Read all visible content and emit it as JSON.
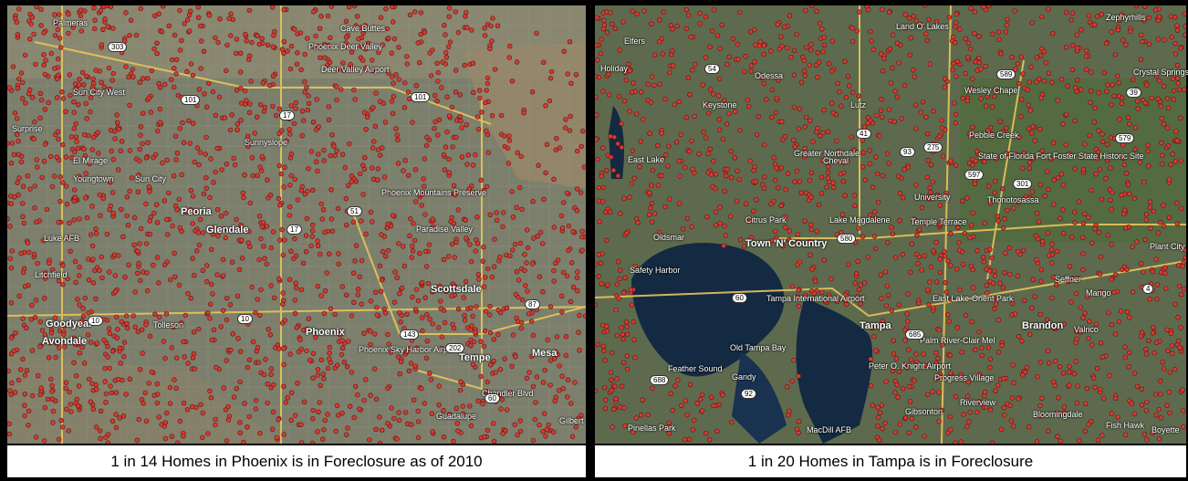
{
  "panels": [
    {
      "caption": "1 in 14 Homes in Phoenix is in Foreclosure as of 2010",
      "map_labels": [
        "Sun City West",
        "Surprise",
        "El Mirage",
        "Sun City",
        "Youngtown",
        "Peoria",
        "Glendale",
        "Luke AFB",
        "Litchfield",
        "Goodyear",
        "Avondale",
        "Tolleson",
        "Phoenix",
        "Scottsdale",
        "Tempe",
        "Mesa",
        "Gilbert",
        "Paradise Valley",
        "Phoenix Mountains Preserve",
        "Phoenix Sky Harbor Airport",
        "Guadalupe",
        "Deer Valley Airport",
        "Phoenix Deer Valley",
        "Cave Buttes",
        "Palmeras",
        "Sunnyslope",
        "Chandler Blvd"
      ],
      "road_shields": [
        "303",
        "101",
        "17",
        "51",
        "10",
        "202",
        "143",
        "60",
        "87",
        "101",
        "10",
        "17"
      ],
      "base_color": "#7a7f6e"
    },
    {
      "caption": "1 in 20 Homes in Tampa is in Foreclosure",
      "map_labels": [
        "Holiday",
        "Elfers",
        "Odessa",
        "Keystone",
        "Lutz",
        "Land O' Lakes",
        "Wesley Chapel",
        "Zephyrhills",
        "Crystal Springs",
        "Cheval",
        "Greater Northdale",
        "Citrus Park",
        "Lake Magdalene",
        "Temple Terrace",
        "East Lake",
        "Oldsmar",
        "Town 'N' Country",
        "Safety Harbor",
        "Tampa",
        "Brandon",
        "Valrico",
        "Old Tampa Bay",
        "Gandy",
        "Pinellas Park",
        "Gibsonton",
        "Riverview",
        "Bloomingdale",
        "Boyette",
        "Fish Hawk",
        "Seffner",
        "Mango",
        "Plant City",
        "Thonotosassa",
        "Progress Village",
        "Palm River-Clair Mel",
        "East Lake-Orient Park",
        "MacDill AFB",
        "Peter O. Knight Airport",
        "Feather Sound",
        "Tampa International Airport",
        "University",
        "Pebble Creek",
        "State of Florida Fort Foster State Historic Site"
      ],
      "road_shields": [
        "54",
        "589",
        "41",
        "93",
        "275",
        "4",
        "580",
        "60",
        "92",
        "301",
        "39",
        "579",
        "597",
        "685",
        "688"
      ],
      "base_color": "#5f6b4f"
    }
  ],
  "pin_color": "#d63b32",
  "water_color": "#15283f"
}
